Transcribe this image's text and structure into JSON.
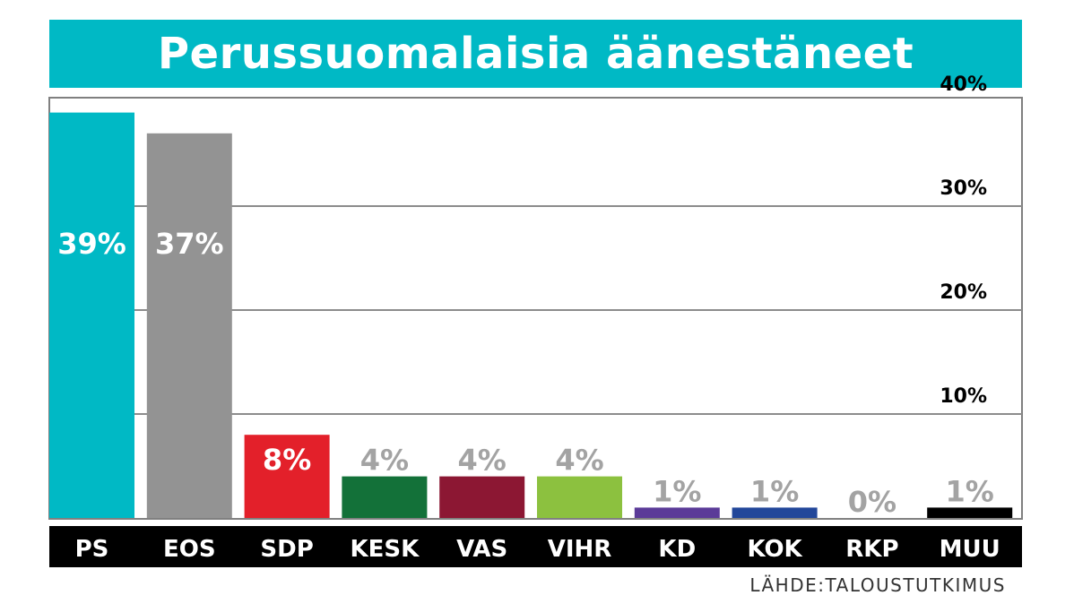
{
  "chart_data": {
    "type": "bar",
    "title": "Perussuomalaisia äänestäneet",
    "categories": [
      "PS",
      "EOS",
      "SDP",
      "KESK",
      "VAS",
      "VIHR",
      "KD",
      "KOK",
      "RKP",
      "MUU"
    ],
    "values": [
      39,
      37,
      8,
      4,
      4,
      4,
      1,
      1,
      0,
      1
    ],
    "value_labels": [
      "39%",
      "37%",
      "8%",
      "4%",
      "4%",
      "4%",
      "1%",
      "1%",
      "0%",
      "1%"
    ],
    "colors": [
      "#00b9c5",
      "#939393",
      "#e3202a",
      "#137139",
      "#8c1733",
      "#8cc13f",
      "#5b3b98",
      "#22479a",
      "#ffffff",
      "#000000"
    ],
    "label_colors": [
      "#ffffff",
      "#ffffff",
      "#ffffff",
      "#a3a3a3",
      "#a3a3a3",
      "#a3a3a3",
      "#a3a3a3",
      "#a3a3a3",
      "#a3a3a3",
      "#a3a3a3"
    ],
    "label_inside": [
      true,
      true,
      true,
      false,
      false,
      false,
      false,
      false,
      false,
      false
    ],
    "yticks": [
      "10%",
      "20%",
      "30%",
      "40%"
    ],
    "ytick_values": [
      10,
      20,
      30,
      40
    ],
    "ylim": [
      0,
      40
    ],
    "xlabel": "",
    "ylabel": "",
    "grid": true,
    "source": "LÄHDE:TALOUSTUTKIMUS",
    "accent_color": "#00b9c5",
    "axis_band_color": "#000000"
  }
}
